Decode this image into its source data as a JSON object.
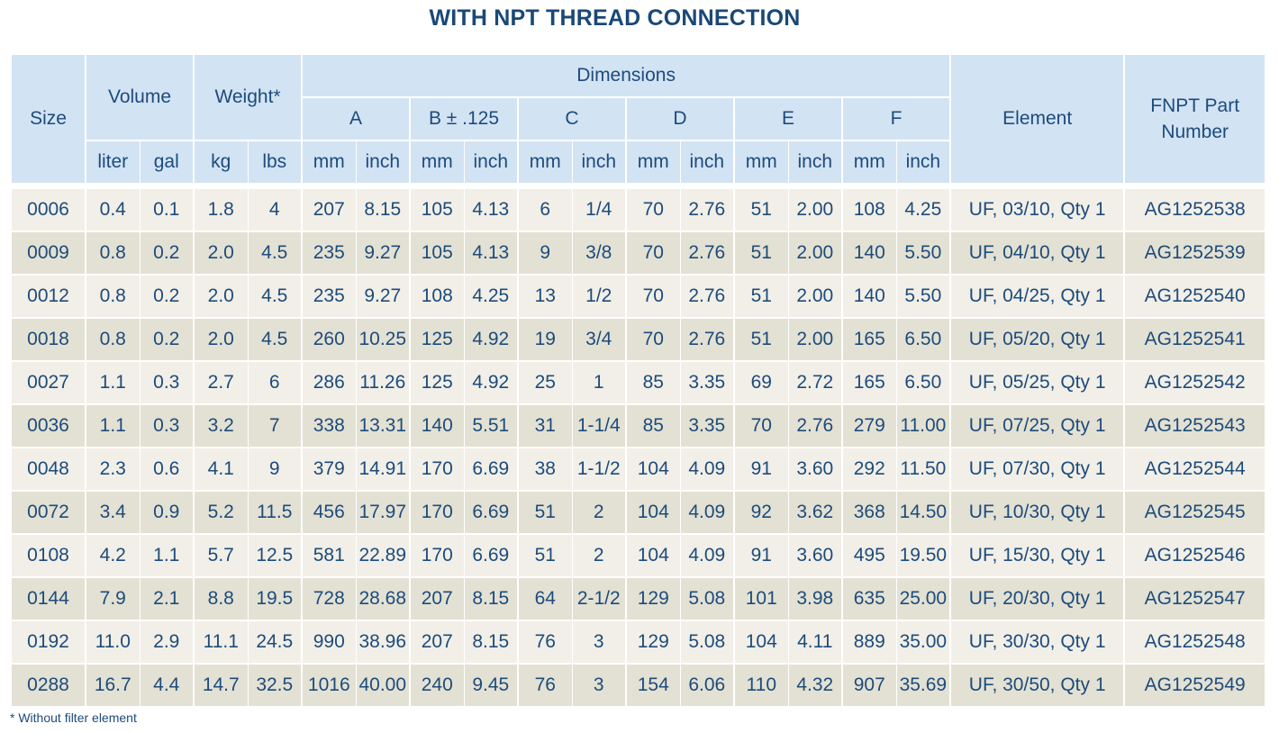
{
  "title": "WITH NPT THREAD CONNECTION",
  "header": {
    "size": "Size",
    "volume": "Volume",
    "weight": "Weight*",
    "dimensions": "Dimensions",
    "element": "Element",
    "part_number": "FNPT Part Number",
    "dims": [
      "A",
      "B ± .125",
      "C",
      "D",
      "E",
      "F"
    ],
    "units": [
      "liter",
      "gal",
      "kg",
      "lbs",
      "mm",
      "inch",
      "mm",
      "inch",
      "mm",
      "inch",
      "mm",
      "inch",
      "mm",
      "inch",
      "mm",
      "inch"
    ]
  },
  "rows": [
    [
      "0006",
      "0.4",
      "0.1",
      "1.8",
      "4",
      "207",
      "8.15",
      "105",
      "4.13",
      "6",
      "1/4",
      "70",
      "2.76",
      "51",
      "2.00",
      "108",
      "4.25",
      "UF, 03/10, Qty 1",
      "AG1252538"
    ],
    [
      "0009",
      "0.8",
      "0.2",
      "2.0",
      "4.5",
      "235",
      "9.27",
      "105",
      "4.13",
      "9",
      "3/8",
      "70",
      "2.76",
      "51",
      "2.00",
      "140",
      "5.50",
      "UF, 04/10, Qty 1",
      "AG1252539"
    ],
    [
      "0012",
      "0.8",
      "0.2",
      "2.0",
      "4.5",
      "235",
      "9.27",
      "108",
      "4.25",
      "13",
      "1/2",
      "70",
      "2.76",
      "51",
      "2.00",
      "140",
      "5.50",
      "UF, 04/25, Qty 1",
      "AG1252540"
    ],
    [
      "0018",
      "0.8",
      "0.2",
      "2.0",
      "4.5",
      "260",
      "10.25",
      "125",
      "4.92",
      "19",
      "3/4",
      "70",
      "2.76",
      "51",
      "2.00",
      "165",
      "6.50",
      "UF, 05/20, Qty 1",
      "AG1252541"
    ],
    [
      "0027",
      "1.1",
      "0.3",
      "2.7",
      "6",
      "286",
      "11.26",
      "125",
      "4.92",
      "25",
      "1",
      "85",
      "3.35",
      "69",
      "2.72",
      "165",
      "6.50",
      "UF, 05/25, Qty 1",
      "AG1252542"
    ],
    [
      "0036",
      "1.1",
      "0.3",
      "3.2",
      "7",
      "338",
      "13.31",
      "140",
      "5.51",
      "31",
      "1-1/4",
      "85",
      "3.35",
      "70",
      "2.76",
      "279",
      "11.00",
      "UF, 07/25, Qty 1",
      "AG1252543"
    ],
    [
      "0048",
      "2.3",
      "0.6",
      "4.1",
      "9",
      "379",
      "14.91",
      "170",
      "6.69",
      "38",
      "1-1/2",
      "104",
      "4.09",
      "91",
      "3.60",
      "292",
      "11.50",
      "UF, 07/30, Qty 1",
      "AG1252544"
    ],
    [
      "0072",
      "3.4",
      "0.9",
      "5.2",
      "11.5",
      "456",
      "17.97",
      "170",
      "6.69",
      "51",
      "2",
      "104",
      "4.09",
      "92",
      "3.62",
      "368",
      "14.50",
      "UF, 10/30, Qty 1",
      "AG1252545"
    ],
    [
      "0108",
      "4.2",
      "1.1",
      "5.7",
      "12.5",
      "581",
      "22.89",
      "170",
      "6.69",
      "51",
      "2",
      "104",
      "4.09",
      "91",
      "3.60",
      "495",
      "19.50",
      "UF, 15/30, Qty 1",
      "AG1252546"
    ],
    [
      "0144",
      "7.9",
      "2.1",
      "8.8",
      "19.5",
      "728",
      "28.68",
      "207",
      "8.15",
      "64",
      "2-1/2",
      "129",
      "5.08",
      "101",
      "3.98",
      "635",
      "25.00",
      "UF, 20/30, Qty 1",
      "AG1252547"
    ],
    [
      "0192",
      "11.0",
      "2.9",
      "11.1",
      "24.5",
      "990",
      "38.96",
      "207",
      "8.15",
      "76",
      "3",
      "129",
      "5.08",
      "104",
      "4.11",
      "889",
      "35.00",
      "UF, 30/30, Qty 1",
      "AG1252548"
    ],
    [
      "0288",
      "16.7",
      "4.4",
      "14.7",
      "32.5",
      "1016",
      "40.00",
      "240",
      "9.45",
      "76",
      "3",
      "154",
      "6.06",
      "110",
      "4.32",
      "907",
      "35.69",
      "UF, 30/50, Qty 1",
      "AG1252549"
    ]
  ],
  "footnote": "*  Without filter element",
  "colors": {
    "header_bg": "#d2e3f4",
    "row_light": "#f1efe7",
    "row_dark": "#e3e1d3",
    "text": "#1d4b7c"
  }
}
